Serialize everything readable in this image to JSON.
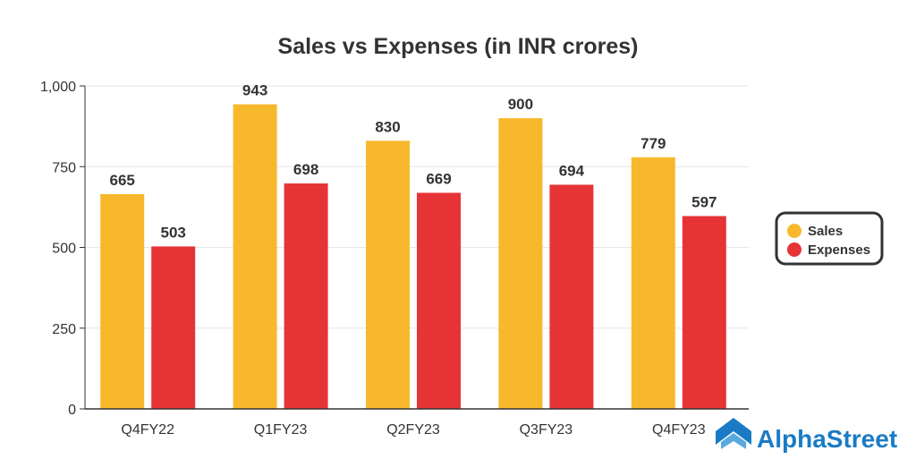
{
  "chart_data": {
    "type": "bar",
    "title": "Sales vs Expenses (in INR crores)",
    "xlabel": "",
    "ylabel": "",
    "ylim": [
      0,
      1000
    ],
    "yticks": [
      0,
      250,
      500,
      750,
      1000
    ],
    "ytick_labels": [
      "0",
      "250",
      "500",
      "750",
      "1,000"
    ],
    "grid": true,
    "legend_position": "right",
    "categories": [
      "Q4FY22",
      "Q1FY23",
      "Q2FY23",
      "Q3FY23",
      "Q4FY23"
    ],
    "series": [
      {
        "name": "Sales",
        "color": "#f7b92b",
        "values": [
          665,
          943,
          830,
          900,
          779
        ]
      },
      {
        "name": "Expenses",
        "color": "#e63436",
        "values": [
          503,
          698,
          669,
          694,
          597
        ]
      }
    ]
  },
  "branding": {
    "logo_text": "AlphaStreet",
    "color": "#1a7bc4"
  }
}
